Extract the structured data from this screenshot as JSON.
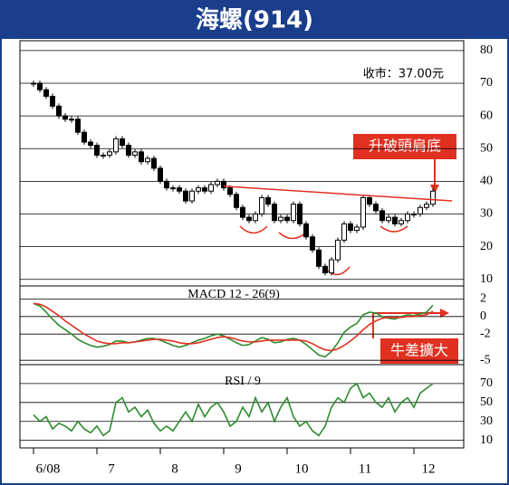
{
  "chart_data": {
    "type": "stock",
    "title": "海螺(914)",
    "close_label": "收市：37.00元",
    "annotation": "升破頭肩底",
    "macd_annotation": "牛差擴大",
    "categories": [
      "6/08",
      null,
      null,
      null,
      null,
      null,
      null,
      null,
      null,
      null,
      "7",
      null,
      null,
      null,
      null,
      null,
      null,
      null,
      null,
      null,
      "8",
      null,
      null,
      null,
      null,
      null,
      null,
      null,
      null,
      null,
      "9",
      null,
      null,
      null,
      null,
      null,
      null,
      null,
      null,
      null,
      "10",
      null,
      null,
      null,
      null,
      null,
      null,
      null,
      null,
      null,
      "11",
      null,
      null,
      null,
      null,
      null,
      null,
      null,
      null,
      null,
      "12",
      null,
      null,
      null
    ],
    "price": {
      "values": [
        70,
        68,
        66,
        63,
        60,
        59,
        59,
        55,
        52,
        51,
        48,
        48,
        49,
        53,
        51,
        48,
        49,
        46,
        47,
        44,
        40,
        38,
        38,
        37,
        34,
        37,
        38,
        37,
        39,
        40,
        38,
        36,
        32,
        29,
        28,
        30,
        35,
        33,
        28,
        29,
        28,
        33,
        27,
        23,
        19,
        14,
        12,
        16,
        22,
        27,
        25,
        26,
        35,
        33,
        31,
        28,
        29,
        27,
        28,
        30,
        30,
        32,
        33,
        37
      ],
      "color": "#000000",
      "ylim": [
        8,
        83
      ],
      "yticks": [
        10,
        20,
        30,
        40,
        50,
        60,
        70,
        80
      ]
    },
    "trendline": {
      "x": [
        30,
        66
      ],
      "values": [
        38.5,
        34
      ],
      "color": "#e03020"
    },
    "macd": {
      "title": "MACD 12 - 26(9)",
      "ylim": [
        -5.5,
        3.5
      ],
      "yticks": [
        2,
        0,
        -2,
        -5
      ],
      "series": [
        {
          "color": "#2e8b2e",
          "values": [
            1.5,
            1.2,
            0.5,
            -0.3,
            -1,
            -1.5,
            -2,
            -2.6,
            -3,
            -3.3,
            -3.5,
            -3.4,
            -3.2,
            -2.8,
            -2.8,
            -3,
            -2.9,
            -2.7,
            -2.5,
            -2.5,
            -2.7,
            -3,
            -3.3,
            -3.5,
            -3.3,
            -3,
            -2.7,
            -2.5,
            -2.2,
            -2,
            -2.2,
            -2.6,
            -3,
            -3.3,
            -3.2,
            -2.8,
            -2.4,
            -2.6,
            -3,
            -2.9,
            -2.6,
            -2.5,
            -2.7,
            -3.2,
            -3.8,
            -4.4,
            -4.6,
            -4,
            -3,
            -1.8,
            -1.2,
            -0.8,
            0.2,
            0.5,
            0.4,
            0,
            -0.2,
            -0.3,
            0,
            0.2,
            0.1,
            0.3,
            0.5,
            1.3
          ]
        },
        {
          "color": "#e03020",
          "values": [
            1.5,
            1.4,
            1.1,
            0.6,
            0.1,
            -0.5,
            -1,
            -1.5,
            -2,
            -2.4,
            -2.8,
            -3,
            -3.1,
            -3.1,
            -3,
            -3,
            -2.9,
            -2.8,
            -2.7,
            -2.6,
            -2.6,
            -2.7,
            -2.8,
            -3,
            -3.1,
            -3.1,
            -3,
            -2.8,
            -2.6,
            -2.4,
            -2.3,
            -2.4,
            -2.6,
            -2.8,
            -2.9,
            -2.9,
            -2.8,
            -2.7,
            -2.7,
            -2.7,
            -2.7,
            -2.7,
            -2.7,
            -2.8,
            -3.1,
            -3.5,
            -3.8,
            -3.9,
            -3.7,
            -3.3,
            -2.8,
            -2.2,
            -1.5,
            -0.9,
            -0.5,
            -0.2,
            -0.1,
            -0.1,
            -0.1,
            0,
            0,
            0.1,
            0.2,
            0.6
          ]
        }
      ]
    },
    "rsi": {
      "title": "RSI / 9",
      "ylim": [
        2,
        90
      ],
      "yticks": [
        70,
        50,
        30,
        10
      ],
      "color": "#2e8b2e",
      "values": [
        37,
        30,
        35,
        22,
        28,
        25,
        20,
        30,
        22,
        18,
        25,
        15,
        20,
        50,
        55,
        40,
        45,
        35,
        42,
        28,
        20,
        25,
        20,
        30,
        40,
        30,
        48,
        35,
        45,
        50,
        40,
        25,
        30,
        45,
        35,
        55,
        40,
        50,
        30,
        45,
        55,
        35,
        25,
        30,
        20,
        15,
        25,
        45,
        55,
        50,
        65,
        70,
        55,
        60,
        50,
        45,
        55,
        40,
        50,
        55,
        45,
        60,
        65,
        70
      ]
    }
  }
}
